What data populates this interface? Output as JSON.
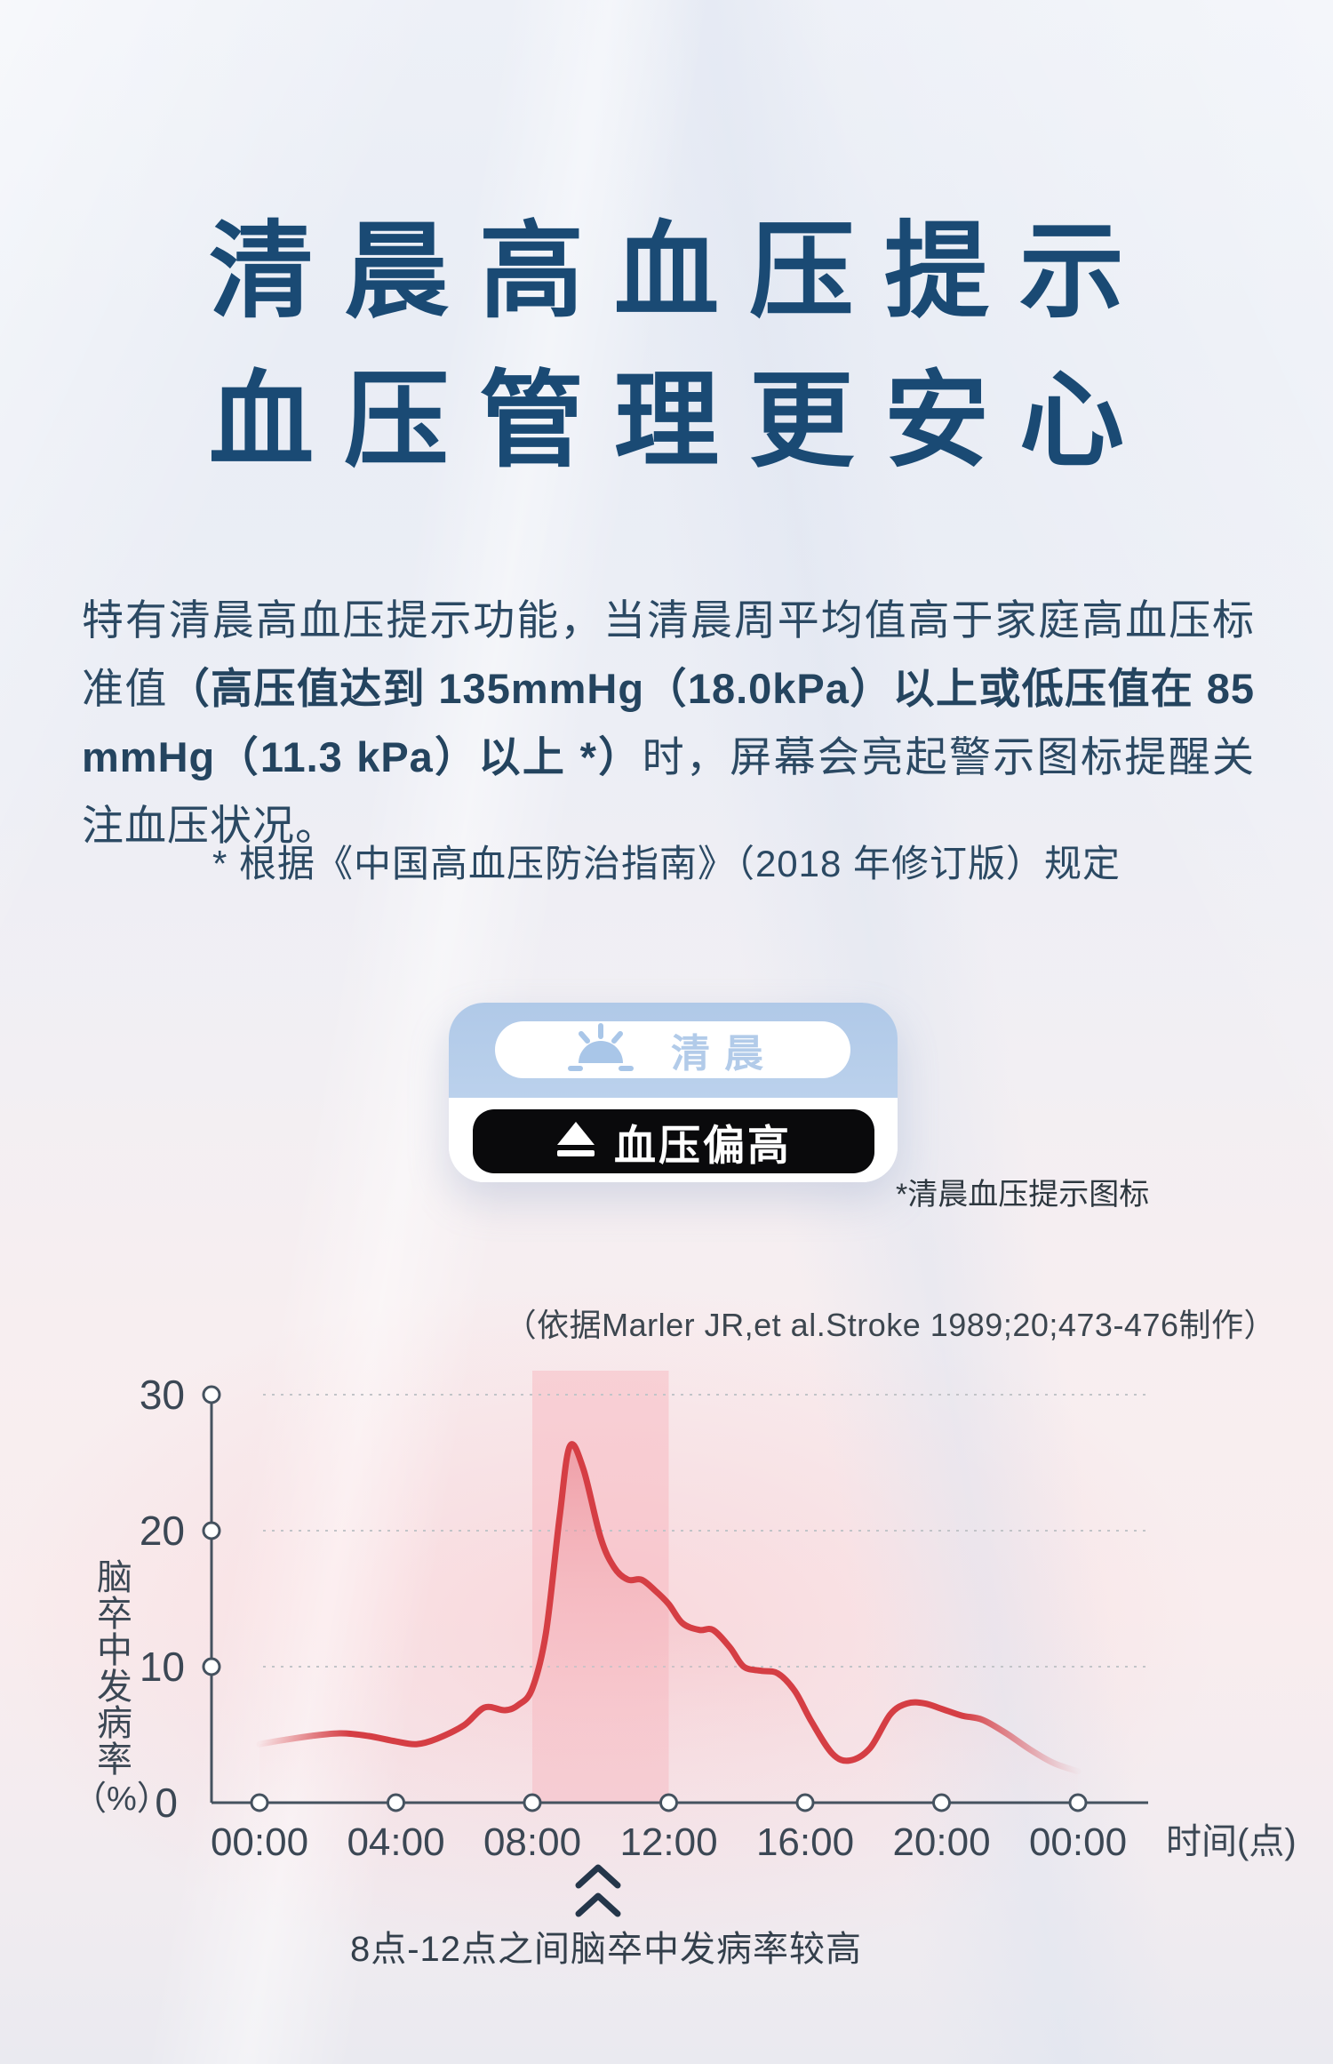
{
  "page": {
    "title_line1": "清晨高血压提示",
    "title_line2": "血压管理更安心",
    "paragraph": {
      "normal_1": "特有清晨高血压提示功能，当清晨周平均值高于家庭高血压标准值",
      "bold": "（高压值达到 135mmHg（18.0kPa）以上或低压值在 85 mmHg（11.3 kPa）以上 *）",
      "normal_2": "时，屏幕会亮起警示图标提醒关注血压状况。"
    },
    "footnote": "* 根据《中国高血压防治指南》（2018 年修订版）规定",
    "title_color": "#1a4a74"
  },
  "morning_card": {
    "morning_label": "清晨",
    "alert_label": "血压偏高",
    "caption": "*清晨血压提示图标",
    "icons": {
      "sunrise_icon": "sunrise-icon",
      "alert_triangle_icon": "eject-triangle-icon"
    },
    "colors": {
      "card_blue": "#b4cce9",
      "sun_blue": "#a9c6e8",
      "alert_pill_black": "#0a0a0c"
    }
  },
  "chart_data": {
    "type": "area",
    "source_note": "（依据Marler JR,et al.Stroke 1989;20;473-476制作）",
    "xlabel": "时间(点)",
    "ylabel_main": "脑卒中发病率",
    "ylabel_unit": "（%）",
    "x_tick_labels": [
      "00:00",
      "04:00",
      "08:00",
      "12:00",
      "16:00",
      "20:00",
      "00:00"
    ],
    "y_tick_labels": [
      "30",
      "20",
      "10",
      "0"
    ],
    "ylim": [
      0,
      30
    ],
    "x_range_hours": [
      0,
      24
    ],
    "legend": "none",
    "grid": "horizontal-dashed",
    "highlight_band_hours": [
      8,
      12
    ],
    "annotation": "8点-12点之间脑卒中发病率较高",
    "line_color": "#d53e44",
    "x_hours": [
      0,
      0.7,
      1.5,
      2.4,
      3.2,
      4,
      4.6,
      5.2,
      6,
      6.6,
      7.2,
      7.6,
      8,
      8.4,
      8.8,
      9.1,
      9.5,
      10,
      10.4,
      10.8,
      11.2,
      11.6,
      12,
      12.4,
      12.9,
      13.3,
      13.8,
      14.2,
      14.7,
      15.2,
      15.7,
      16.2,
      16.8,
      17.3,
      17.9,
      18.5,
      19,
      19.5,
      20,
      20.6,
      21.2,
      21.9,
      22.6,
      23.3,
      24
    ],
    "y_percent": [
      4.3,
      4.6,
      4.9,
      5.1,
      4.9,
      4.5,
      4.3,
      4.7,
      5.7,
      7.0,
      6.8,
      7.2,
      8.4,
      12.5,
      21,
      26.2,
      24.5,
      19.5,
      17.3,
      16.4,
      16.4,
      15.6,
      14.6,
      13.2,
      12.7,
      12.7,
      11.4,
      10.0,
      9.7,
      9.5,
      8.2,
      5.9,
      3.6,
      3.1,
      4.0,
      6.5,
      7.3,
      7.3,
      6.9,
      6.4,
      6.1,
      5.1,
      3.9,
      2.9,
      2.3
    ]
  }
}
